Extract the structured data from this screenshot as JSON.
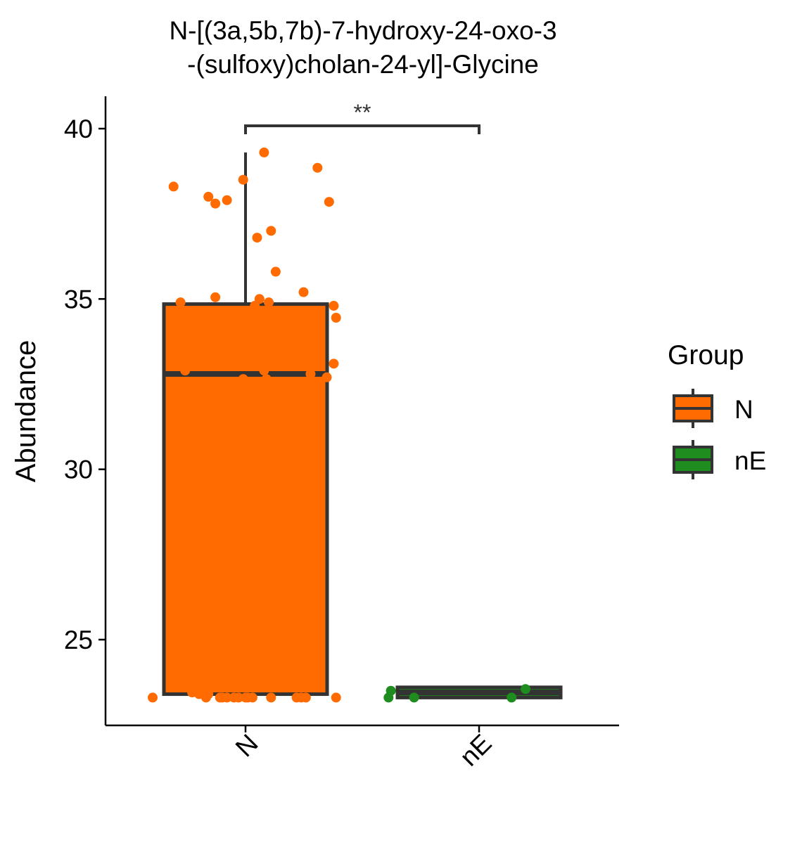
{
  "chart_data": {
    "type": "box",
    "title_line1": "N-[(3a,5b,7b)-7-hydroxy-24-oxo-3",
    "title_line2": "-(sulfoxy)cholan-24-yl]-Glycine",
    "xlabel": "",
    "ylabel": "Abundance",
    "ylim": [
      22.5,
      41.0
    ],
    "yticks": [
      25,
      30,
      35,
      40
    ],
    "categories": [
      "N",
      "nE"
    ],
    "legend": {
      "title": "Group",
      "position": "right",
      "items": [
        {
          "label": "N",
          "color": "#FF6B00"
        },
        {
          "label": "nE",
          "color": "#1E8C1E"
        }
      ]
    },
    "significance": {
      "from": "N",
      "to": "nE",
      "label": "**",
      "y": 40.1
    },
    "boxes": [
      {
        "group": "N",
        "color": "#FF6B00",
        "q1": 23.4,
        "median": 32.8,
        "q3": 34.85,
        "whisker_low": 23.4,
        "whisker_high": 39.3
      },
      {
        "group": "nE",
        "color": "#1E8C1E",
        "q1": 23.3,
        "median": 23.45,
        "q3": 23.6,
        "whisker_low": 23.3,
        "whisker_high": 23.6
      }
    ],
    "points": [
      {
        "group": "N",
        "jitter": -0.4,
        "y": 23.3
      },
      {
        "group": "N",
        "jitter": -0.31,
        "y": 38.3
      },
      {
        "group": "N",
        "jitter": -0.28,
        "y": 34.9
      },
      {
        "group": "N",
        "jitter": -0.27,
        "y": 32.3
      },
      {
        "group": "N",
        "jitter": -0.23,
        "y": 34.55
      },
      {
        "group": "N",
        "jitter": -0.23,
        "y": 23.45
      },
      {
        "group": "N",
        "jitter": -0.2,
        "y": 23.4
      },
      {
        "group": "N",
        "jitter": -0.17,
        "y": 23.3
      },
      {
        "group": "N",
        "jitter": -0.16,
        "y": 23.4
      },
      {
        "group": "N",
        "jitter": -0.13,
        "y": 35.05
      },
      {
        "group": "N",
        "jitter": -0.11,
        "y": 23.3
      },
      {
        "group": "N",
        "jitter": -0.1,
        "y": 23.3
      },
      {
        "group": "N",
        "jitter": -0.08,
        "y": 23.3
      },
      {
        "group": "N",
        "jitter": -0.26,
        "y": 32.9
      },
      {
        "group": "N",
        "jitter": -0.16,
        "y": 38.0
      },
      {
        "group": "N",
        "jitter": -0.13,
        "y": 37.8
      },
      {
        "group": "N",
        "jitter": -0.08,
        "y": 37.9
      },
      {
        "group": "N",
        "jitter": -0.05,
        "y": 23.3
      },
      {
        "group": "N",
        "jitter": -0.03,
        "y": 23.3
      },
      {
        "group": "N",
        "jitter": -0.01,
        "y": 32.65
      },
      {
        "group": "N",
        "jitter": -0.01,
        "y": 38.5
      },
      {
        "group": "N",
        "jitter": 0.0,
        "y": 23.3
      },
      {
        "group": "N",
        "jitter": 0.01,
        "y": 23.3
      },
      {
        "group": "N",
        "jitter": 0.03,
        "y": 23.3
      },
      {
        "group": "N",
        "jitter": 0.04,
        "y": 34.8
      },
      {
        "group": "N",
        "jitter": 0.05,
        "y": 36.8
      },
      {
        "group": "N",
        "jitter": 0.06,
        "y": 35.0
      },
      {
        "group": "N",
        "jitter": 0.08,
        "y": 39.3
      },
      {
        "group": "N",
        "jitter": 0.08,
        "y": 32.9
      },
      {
        "group": "N",
        "jitter": 0.09,
        "y": 32.65
      },
      {
        "group": "N",
        "jitter": 0.1,
        "y": 34.9
      },
      {
        "group": "N",
        "jitter": 0.11,
        "y": 23.3
      },
      {
        "group": "N",
        "jitter": 0.11,
        "y": 37.0
      },
      {
        "group": "N",
        "jitter": 0.13,
        "y": 35.8
      },
      {
        "group": "N",
        "jitter": 0.22,
        "y": 23.3
      },
      {
        "group": "N",
        "jitter": 0.24,
        "y": 23.3
      },
      {
        "group": "N",
        "jitter": 0.25,
        "y": 35.2
      },
      {
        "group": "N",
        "jitter": 0.26,
        "y": 23.3
      },
      {
        "group": "N",
        "jitter": 0.28,
        "y": 32.8
      },
      {
        "group": "N",
        "jitter": 0.31,
        "y": 38.85
      },
      {
        "group": "N",
        "jitter": 0.35,
        "y": 32.7
      },
      {
        "group": "N",
        "jitter": 0.36,
        "y": 37.85
      },
      {
        "group": "N",
        "jitter": 0.38,
        "y": 34.8
      },
      {
        "group": "N",
        "jitter": 0.38,
        "y": 33.1
      },
      {
        "group": "N",
        "jitter": 0.39,
        "y": 34.45
      },
      {
        "group": "N",
        "jitter": 0.39,
        "y": 23.3
      },
      {
        "group": "nE",
        "jitter": -0.39,
        "y": 23.3
      },
      {
        "group": "nE",
        "jitter": -0.38,
        "y": 23.5
      },
      {
        "group": "nE",
        "jitter": -0.28,
        "y": 23.3
      },
      {
        "group": "nE",
        "jitter": 0.14,
        "y": 23.3
      },
      {
        "group": "nE",
        "jitter": 0.2,
        "y": 23.55
      }
    ]
  }
}
